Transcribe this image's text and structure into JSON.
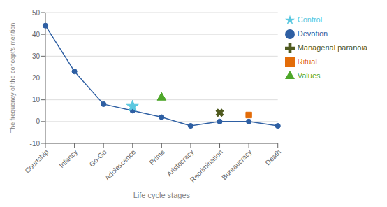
{
  "chart_data": {
    "type": "line",
    "categories": [
      "Courtship",
      "Infancy",
      "Go-Go",
      "Adolescence",
      "Prime",
      "Aristocracy",
      "Recrimination",
      "Bureaucracy",
      "Death"
    ],
    "series": [
      {
        "name": "Devotion",
        "color": "#2e5fa3",
        "marker": "circle",
        "line_style": "solid",
        "values": [
          44,
          23,
          8,
          5,
          2,
          -2,
          0,
          0,
          -2
        ]
      },
      {
        "name": "Ritual",
        "color": "#e36c09",
        "marker": "square",
        "line_style": "none",
        "values": [
          null,
          null,
          null,
          null,
          null,
          null,
          null,
          3,
          null
        ]
      },
      {
        "name": "Values",
        "color": "#4ea72a",
        "marker": "triangle",
        "line_style": "none",
        "values": [
          null,
          null,
          null,
          null,
          11,
          null,
          null,
          null,
          null
        ]
      },
      {
        "name": "Managerial paranoia",
        "color": "#4f5a1f",
        "marker": "x",
        "line_style": "none",
        "values": [
          null,
          null,
          null,
          null,
          null,
          null,
          4,
          null,
          null
        ]
      },
      {
        "name": "Control",
        "color": "#5bc8e0",
        "marker": "star",
        "line_style": "none",
        "values": [
          null,
          null,
          null,
          7,
          null,
          null,
          null,
          null,
          null
        ]
      }
    ],
    "xlabel": "Life cycle stages",
    "ylabel": "The frequency of the concept's mention",
    "ylim": [
      -10,
      50
    ],
    "yticks": [
      -10,
      0,
      10,
      20,
      30,
      40,
      50
    ],
    "grid": true,
    "legend": "right"
  }
}
